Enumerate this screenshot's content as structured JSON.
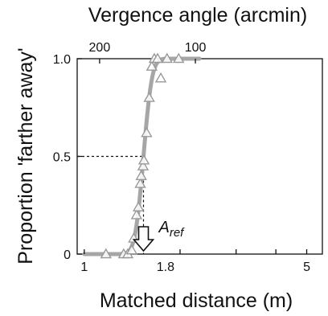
{
  "chart_data": {
    "type": "scatter",
    "title": "",
    "xlabel": "Matched distance (m)",
    "ylabel": "Proportion 'farther away'",
    "top_axis_label": "Vergence angle (arcmin)",
    "x_scale": "log",
    "xlim": [
      0.95,
      5.6
    ],
    "ylim": [
      0,
      1
    ],
    "x_ticks": [
      {
        "value": 1,
        "label": "1"
      },
      {
        "value": 2,
        "label": ""
      },
      {
        "value": 3,
        "label": ""
      },
      {
        "value": 4,
        "label": ""
      },
      {
        "value": 5,
        "label": "5"
      }
    ],
    "x_tick_label_mid": {
      "value": 1.8,
      "label": "1.8"
    },
    "top_ticks": [
      {
        "value": 200,
        "label": "200"
      },
      {
        "value": 100,
        "label": "100"
      }
    ],
    "y_ticks": [
      {
        "value": 0,
        "label": "0"
      },
      {
        "value": 0.5,
        "label": "0.5"
      },
      {
        "value": 1.0,
        "label": "1.0"
      }
    ],
    "series": [
      {
        "marker": "triangle-open",
        "color": "#999999",
        "points": [
          {
            "x": 1.17,
            "y": 0.0
          },
          {
            "x": 1.33,
            "y": 0.0
          },
          {
            "x": 1.37,
            "y": 0.0
          },
          {
            "x": 1.41,
            "y": 0.02
          },
          {
            "x": 1.43,
            "y": 0.08
          },
          {
            "x": 1.46,
            "y": 0.2
          },
          {
            "x": 1.48,
            "y": 0.24
          },
          {
            "x": 1.5,
            "y": 0.36
          },
          {
            "x": 1.51,
            "y": 0.4
          },
          {
            "x": 1.53,
            "y": 0.45
          },
          {
            "x": 1.54,
            "y": 0.48
          },
          {
            "x": 1.57,
            "y": 0.62
          },
          {
            "x": 1.6,
            "y": 0.8
          },
          {
            "x": 1.63,
            "y": 0.96
          },
          {
            "x": 1.66,
            "y": 1.0
          },
          {
            "x": 1.7,
            "y": 1.0
          },
          {
            "x": 1.74,
            "y": 0.9
          },
          {
            "x": 1.82,
            "y": 1.0
          },
          {
            "x": 1.98,
            "y": 1.0
          }
        ]
      }
    ],
    "fit": {
      "type": "cumulative-gaussian-log",
      "mean": 1.535,
      "sigma_log10": 0.021,
      "x_range": [
        1.0,
        2.3
      ],
      "color": "#a6a6a6"
    },
    "reference_line": {
      "y": 0.5,
      "x": 1.535
    },
    "annotation": {
      "text": "A",
      "subscript": "ref",
      "x": 1.535
    }
  }
}
